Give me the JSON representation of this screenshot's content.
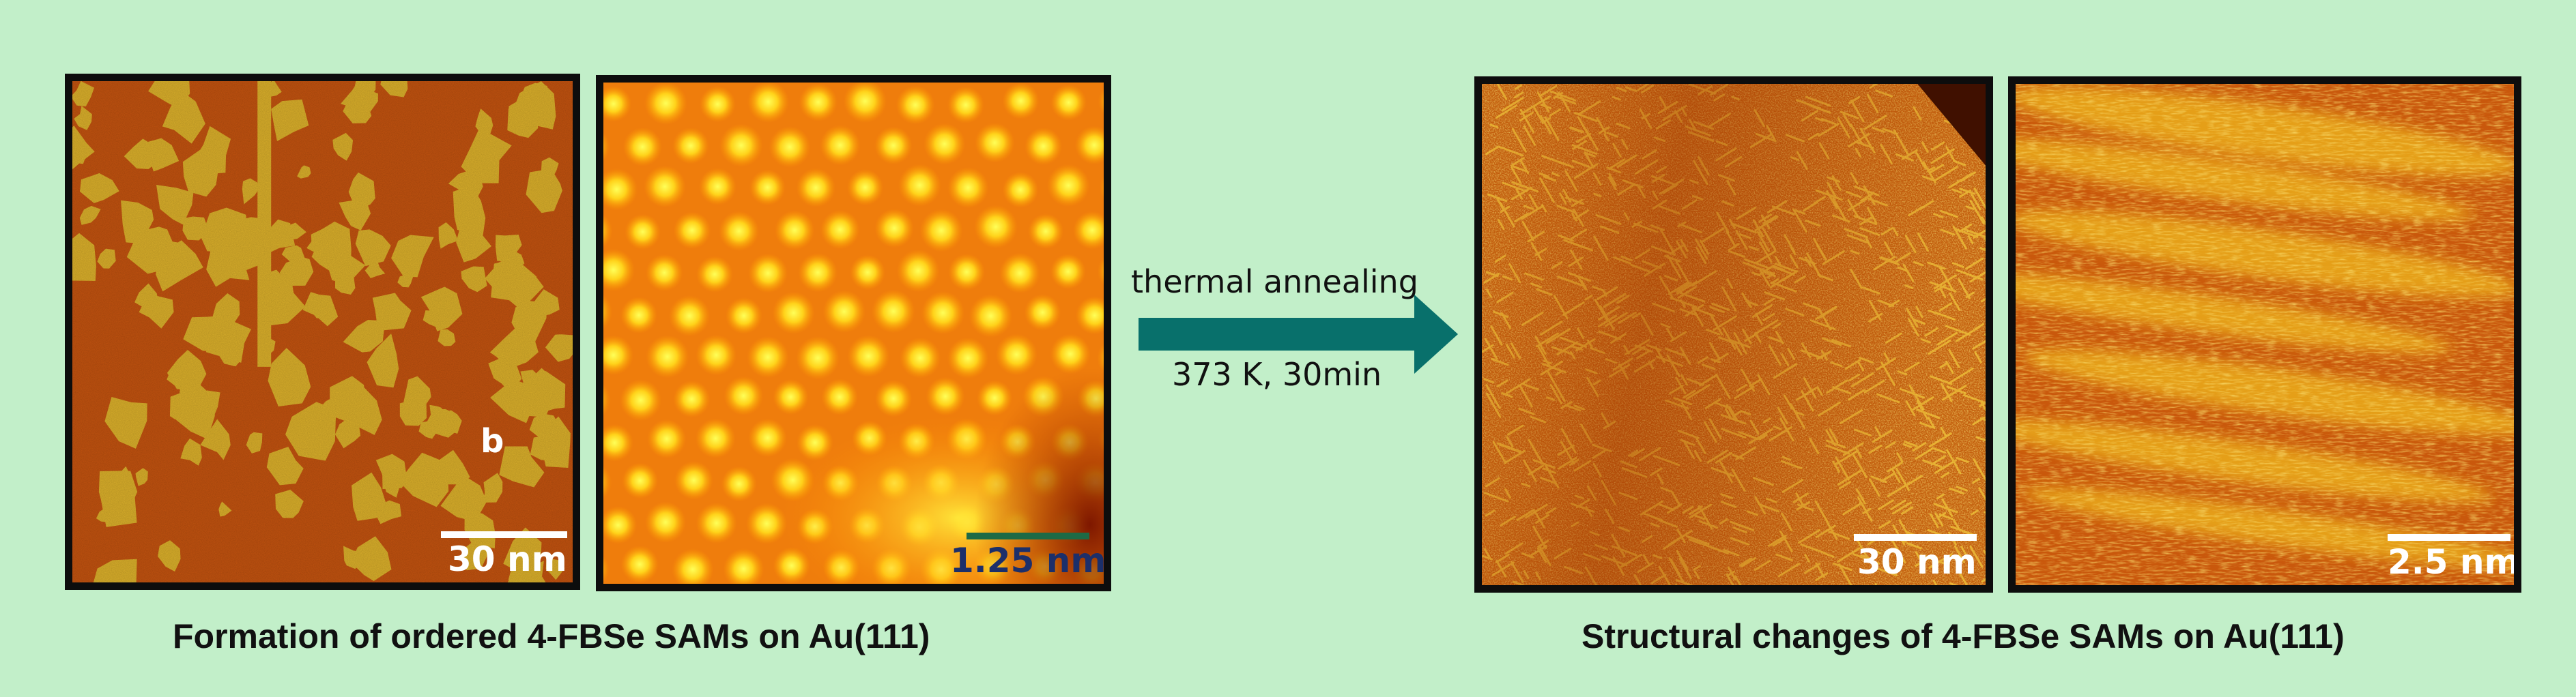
{
  "panels": [
    {
      "scale_label": "30 nm",
      "marker": "b"
    },
    {
      "scale_label": "1.25 nm"
    },
    {
      "scale_label": "30 nm"
    },
    {
      "scale_label": "2.5 nm"
    }
  ],
  "captions": {
    "left": "Formation of ordered 4-FBSe SAMs on Au(111)",
    "right": "Structural changes of 4-FBSe SAMs on Au(111)"
  },
  "arrow": {
    "label_top": "thermal annealing",
    "label_bottom": "373 K, 30min",
    "color": "#08706b"
  },
  "colors": {
    "background": "#c2efc9",
    "frame": "#0d0d0d",
    "stm_dark": "#b8480a",
    "stm_light": "#f2cc2e"
  }
}
